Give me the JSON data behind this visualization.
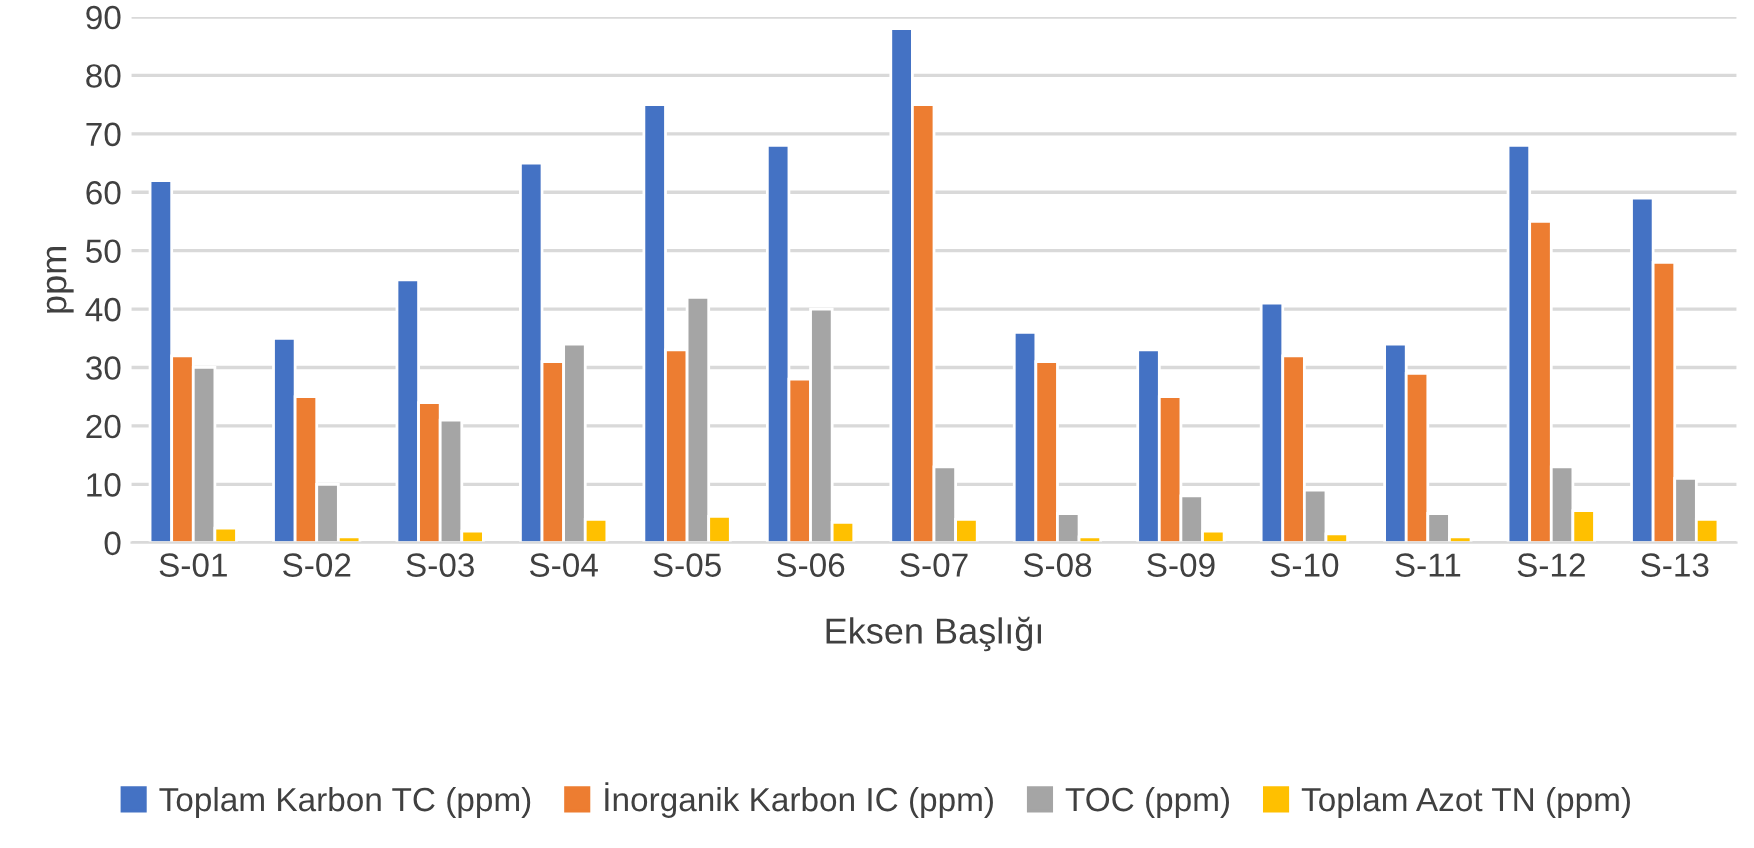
{
  "chart_data": {
    "type": "bar",
    "xlabel": "Eksen Başlığı",
    "ylabel": "ppm",
    "categories": [
      "S-01",
      "S-02",
      "S-03",
      "S-04",
      "S-05",
      "S-06",
      "S-07",
      "S-08",
      "S-09",
      "S-10",
      "S-11",
      "S-12",
      "S-13"
    ],
    "series": [
      {
        "name": "Toplam Karbon TC (ppm)",
        "color": "#4472c4",
        "values": [
          62,
          35,
          45,
          65,
          75,
          68,
          88,
          36,
          33,
          41,
          34,
          68,
          59
        ]
      },
      {
        "name": "İnorganik Karbon IC (ppm)",
        "color": "#ed7d31",
        "values": [
          32,
          25,
          24,
          31,
          33,
          28,
          75,
          31,
          25,
          32,
          29,
          55,
          48
        ]
      },
      {
        "name": "TOC (ppm)",
        "color": "#a5a5a5",
        "values": [
          30,
          10,
          21,
          34,
          42,
          40,
          13,
          5,
          8,
          9,
          5,
          13,
          11
        ]
      },
      {
        "name": "Toplam Azot TN (ppm)",
        "color": "#ffc000",
        "values": [
          2.5,
          1,
          2,
          4,
          4.5,
          3.5,
          4,
          1,
          2,
          1.5,
          1,
          5.5,
          4
        ]
      }
    ],
    "ylim": [
      0,
      90
    ],
    "yticks": [
      0,
      10,
      20,
      30,
      40,
      50,
      60,
      70,
      80,
      90
    ],
    "grid": "y",
    "legend": "bottom"
  }
}
